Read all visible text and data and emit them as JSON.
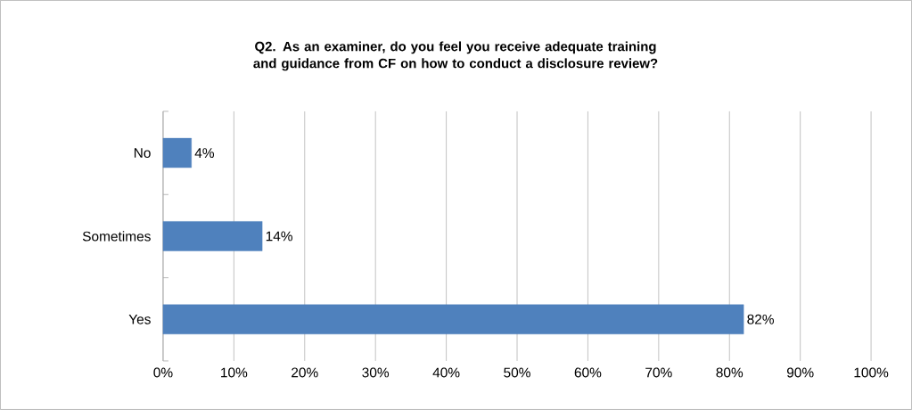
{
  "chart_data": {
    "type": "bar",
    "orientation": "horizontal",
    "title": "Q2. As an examiner, do you feel you receive adequate training and guidance from CF on how to conduct a disclosure review?",
    "categories": [
      "No",
      "Sometimes",
      "Yes"
    ],
    "values": [
      4,
      14,
      82
    ],
    "value_labels": [
      "4%",
      "14%",
      "82%"
    ],
    "color": "#4f81bd",
    "xlim": [
      0,
      100
    ],
    "xticks": [
      {
        "value": 0,
        "label": "0%"
      },
      {
        "value": 10,
        "label": "10%"
      },
      {
        "value": 20,
        "label": "20%"
      },
      {
        "value": 30,
        "label": "30%"
      },
      {
        "value": 40,
        "label": "40%"
      },
      {
        "value": 50,
        "label": "50%"
      },
      {
        "value": 60,
        "label": "60%"
      },
      {
        "value": 70,
        "label": "70%"
      },
      {
        "value": 80,
        "label": "80%"
      },
      {
        "value": 90,
        "label": "90%"
      },
      {
        "value": 100,
        "label": "100%"
      }
    ],
    "grid": "x"
  }
}
